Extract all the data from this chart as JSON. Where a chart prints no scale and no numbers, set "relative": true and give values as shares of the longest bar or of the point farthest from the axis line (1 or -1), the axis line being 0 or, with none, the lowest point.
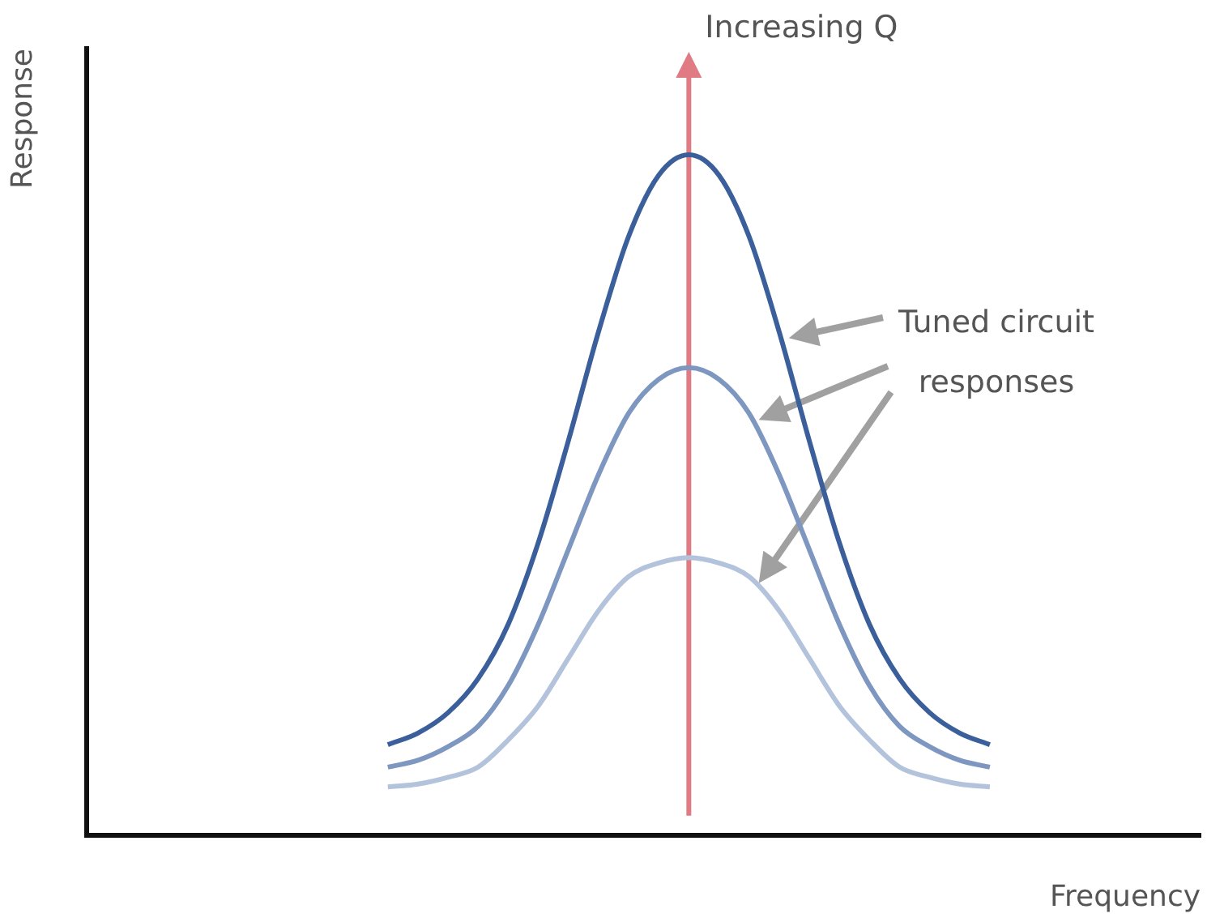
{
  "chart_data": {
    "type": "line",
    "relative": true,
    "xlabel": "Frequency",
    "ylabel": "Response",
    "legend": false,
    "grid": false,
    "categories": [
      null,
      null,
      null,
      null,
      null,
      null,
      null,
      null,
      null,
      null,
      null,
      null,
      null,
      null,
      null,
      null,
      null,
      null,
      null,
      null,
      null,
      null,
      null,
      null,
      null,
      null,
      null,
      null,
      null,
      null,
      null,
      null,
      null,
      null,
      null,
      null,
      null,
      null
    ],
    "series": [
      {
        "color": "#3a5f9a",
        "values": [
          null,
          null,
          null,
          null,
          null,
          null,
          null,
          null,
          null,
          null,
          0.133,
          0.15,
          0.18,
          0.23,
          0.31,
          0.43,
          0.58,
          0.74,
          0.88,
          0.97,
          1.0,
          0.97,
          0.88,
          0.74,
          0.58,
          0.43,
          0.31,
          0.23,
          0.18,
          0.15,
          0.133,
          null,
          null,
          null,
          null,
          null,
          null,
          null
        ]
      },
      {
        "color": "#7d97c0",
        "values": [
          null,
          null,
          null,
          null,
          null,
          null,
          null,
          null,
          null,
          null,
          0.1,
          0.11,
          0.13,
          0.16,
          0.22,
          0.31,
          0.42,
          0.53,
          0.62,
          0.67,
          0.687,
          0.67,
          0.62,
          0.53,
          0.42,
          0.31,
          0.22,
          0.16,
          0.13,
          0.11,
          0.1,
          null,
          null,
          null,
          null,
          null,
          null,
          null
        ]
      },
      {
        "color": "#b4c3dc",
        "values": [
          null,
          null,
          null,
          null,
          null,
          null,
          null,
          null,
          null,
          null,
          0.071,
          0.075,
          0.085,
          0.1,
          0.14,
          0.19,
          0.26,
          0.33,
          0.38,
          0.4,
          0.408,
          0.4,
          0.38,
          0.33,
          0.26,
          0.19,
          0.14,
          0.1,
          0.085,
          0.075,
          0.071,
          null,
          null,
          null,
          null,
          null,
          null,
          null
        ]
      }
    ],
    "annotations": [
      "Increasing Q",
      "Tuned circuit responses"
    ]
  }
}
